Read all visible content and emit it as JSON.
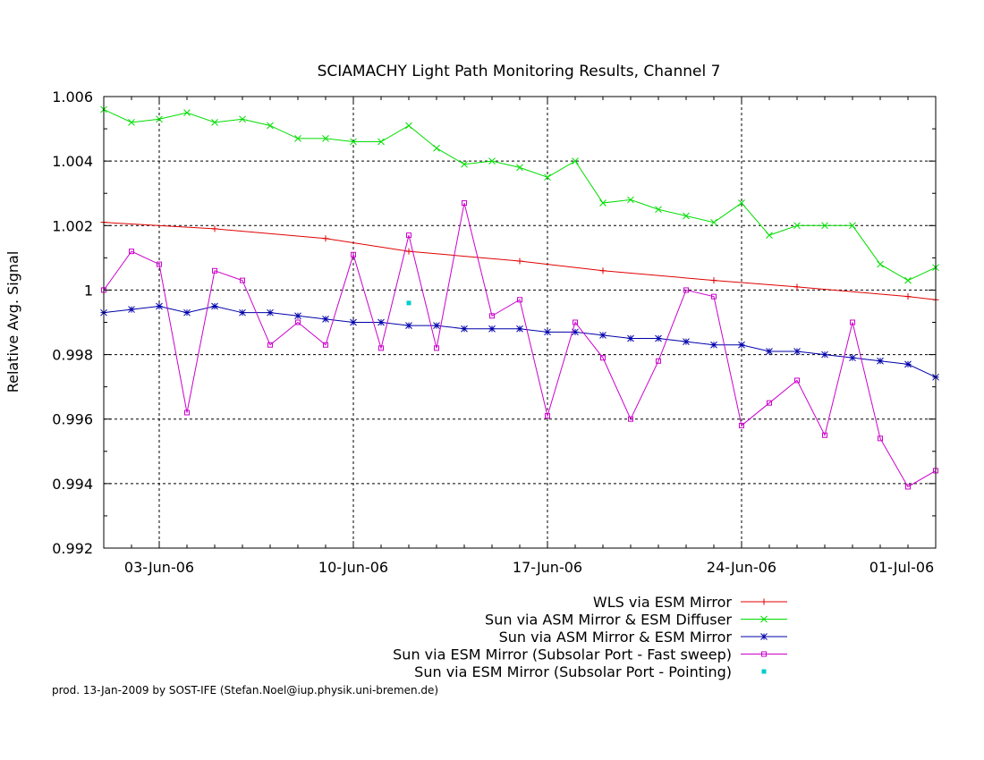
{
  "chart_data": {
    "type": "line",
    "title": "SCIAMACHY Light Path Monitoring Results, Channel 7",
    "xlabel": "",
    "ylabel": "Relative Avg. Signal",
    "x_unit": "date (day of 2006)",
    "xlim": [
      "2006-06-01",
      "2006-07-01"
    ],
    "ylim": [
      0.992,
      1.006
    ],
    "x_ticks": [
      {
        "date": "2006-06-03",
        "label": "03-Jun-06"
      },
      {
        "date": "2006-06-10",
        "label": "10-Jun-06"
      },
      {
        "date": "2006-06-17",
        "label": "17-Jun-06"
      },
      {
        "date": "2006-06-24",
        "label": "24-Jun-06"
      },
      {
        "date": "2006-07-01",
        "label": "01-Jul-06"
      }
    ],
    "y_ticks": [
      {
        "value": 0.992,
        "label": "0.992"
      },
      {
        "value": 0.994,
        "label": "0.994"
      },
      {
        "value": 0.996,
        "label": "0.996"
      },
      {
        "value": 0.998,
        "label": "0.998"
      },
      {
        "value": 1.0,
        "label": "1"
      },
      {
        "value": 1.002,
        "label": "1.002"
      },
      {
        "value": 1.004,
        "label": "1.004"
      },
      {
        "value": 1.006,
        "label": "1.006"
      }
    ],
    "grid": true,
    "legend_position": "bottom-right, below plot",
    "series": [
      {
        "name": "WLS via ESM Mirror",
        "color": "#e00000",
        "marker": "plus",
        "points": [
          {
            "x": "2006-06-01",
            "y": 1.0021
          },
          {
            "x": "2006-06-05",
            "y": 1.0019
          },
          {
            "x": "2006-06-09",
            "y": 1.0016
          },
          {
            "x": "2006-06-12",
            "y": 1.0012
          },
          {
            "x": "2006-06-16",
            "y": 1.0009
          },
          {
            "x": "2006-06-19",
            "y": 1.0006
          },
          {
            "x": "2006-06-23",
            "y": 1.0003
          },
          {
            "x": "2006-06-26",
            "y": 1.0001
          },
          {
            "x": "2006-06-30",
            "y": 0.9998
          },
          {
            "x": "2006-07-01",
            "y": 0.9997
          }
        ]
      },
      {
        "name": "Sun via ASM Mirror & ESM Diffuser",
        "color": "#00dd00",
        "marker": "cross",
        "points": [
          {
            "x": "2006-06-01",
            "y": 1.0056
          },
          {
            "x": "2006-06-02",
            "y": 1.0052
          },
          {
            "x": "2006-06-03",
            "y": 1.0053
          },
          {
            "x": "2006-06-04",
            "y": 1.0055
          },
          {
            "x": "2006-06-05",
            "y": 1.0052
          },
          {
            "x": "2006-06-06",
            "y": 1.0053
          },
          {
            "x": "2006-06-07",
            "y": 1.0051
          },
          {
            "x": "2006-06-08",
            "y": 1.0047
          },
          {
            "x": "2006-06-09",
            "y": 1.0047
          },
          {
            "x": "2006-06-10",
            "y": 1.0046
          },
          {
            "x": "2006-06-11",
            "y": 1.0046
          },
          {
            "x": "2006-06-12",
            "y": 1.0051
          },
          {
            "x": "2006-06-13",
            "y": 1.0044
          },
          {
            "x": "2006-06-14",
            "y": 1.0039
          },
          {
            "x": "2006-06-15",
            "y": 1.004
          },
          {
            "x": "2006-06-16",
            "y": 1.0038
          },
          {
            "x": "2006-06-17",
            "y": 1.0035
          },
          {
            "x": "2006-06-18",
            "y": 1.004
          },
          {
            "x": "2006-06-19",
            "y": 1.0027
          },
          {
            "x": "2006-06-20",
            "y": 1.0028
          },
          {
            "x": "2006-06-21",
            "y": 1.0025
          },
          {
            "x": "2006-06-22",
            "y": 1.0023
          },
          {
            "x": "2006-06-23",
            "y": 1.0021
          },
          {
            "x": "2006-06-24",
            "y": 1.0027
          },
          {
            "x": "2006-06-25",
            "y": 1.0017
          },
          {
            "x": "2006-06-26",
            "y": 1.002
          },
          {
            "x": "2006-06-27",
            "y": 1.002
          },
          {
            "x": "2006-06-28",
            "y": 1.002
          },
          {
            "x": "2006-06-29",
            "y": 1.0008
          },
          {
            "x": "2006-06-30",
            "y": 1.0003
          },
          {
            "x": "2006-07-01",
            "y": 1.0007
          }
        ]
      },
      {
        "name": "Sun via ASM Mirror & ESM Mirror",
        "color": "#0000aa",
        "marker": "star",
        "points": [
          {
            "x": "2006-06-01",
            "y": 0.9993
          },
          {
            "x": "2006-06-02",
            "y": 0.9994
          },
          {
            "x": "2006-06-03",
            "y": 0.9995
          },
          {
            "x": "2006-06-04",
            "y": 0.9993
          },
          {
            "x": "2006-06-05",
            "y": 0.9995
          },
          {
            "x": "2006-06-06",
            "y": 0.9993
          },
          {
            "x": "2006-06-07",
            "y": 0.9993
          },
          {
            "x": "2006-06-08",
            "y": 0.9992
          },
          {
            "x": "2006-06-09",
            "y": 0.9991
          },
          {
            "x": "2006-06-10",
            "y": 0.999
          },
          {
            "x": "2006-06-11",
            "y": 0.999
          },
          {
            "x": "2006-06-12",
            "y": 0.9989
          },
          {
            "x": "2006-06-13",
            "y": 0.9989
          },
          {
            "x": "2006-06-14",
            "y": 0.9988
          },
          {
            "x": "2006-06-15",
            "y": 0.9988
          },
          {
            "x": "2006-06-16",
            "y": 0.9988
          },
          {
            "x": "2006-06-17",
            "y": 0.9987
          },
          {
            "x": "2006-06-18",
            "y": 0.9987
          },
          {
            "x": "2006-06-19",
            "y": 0.9986
          },
          {
            "x": "2006-06-20",
            "y": 0.9985
          },
          {
            "x": "2006-06-21",
            "y": 0.9985
          },
          {
            "x": "2006-06-22",
            "y": 0.9984
          },
          {
            "x": "2006-06-23",
            "y": 0.9983
          },
          {
            "x": "2006-06-24",
            "y": 0.9983
          },
          {
            "x": "2006-06-25",
            "y": 0.9981
          },
          {
            "x": "2006-06-26",
            "y": 0.9981
          },
          {
            "x": "2006-06-27",
            "y": 0.998
          },
          {
            "x": "2006-06-28",
            "y": 0.9979
          },
          {
            "x": "2006-06-29",
            "y": 0.9978
          },
          {
            "x": "2006-06-30",
            "y": 0.9977
          },
          {
            "x": "2006-07-01",
            "y": 0.9973
          }
        ]
      },
      {
        "name": "Sun via ESM Mirror (Subsolar Port - Fast sweep)",
        "color": "#cc00cc",
        "marker": "square",
        "points": [
          {
            "x": "2006-06-01",
            "y": 1.0
          },
          {
            "x": "2006-06-02",
            "y": 1.0012
          },
          {
            "x": "2006-06-03",
            "y": 1.0008
          },
          {
            "x": "2006-06-04",
            "y": 0.9962
          },
          {
            "x": "2006-06-05",
            "y": 1.0006
          },
          {
            "x": "2006-06-06",
            "y": 1.0003
          },
          {
            "x": "2006-06-07",
            "y": 0.9983
          },
          {
            "x": "2006-06-08",
            "y": 0.999
          },
          {
            "x": "2006-06-09",
            "y": 0.9983
          },
          {
            "x": "2006-06-10",
            "y": 1.0011
          },
          {
            "x": "2006-06-11",
            "y": 0.9982
          },
          {
            "x": "2006-06-12",
            "y": 1.0017
          },
          {
            "x": "2006-06-13",
            "y": 0.9982
          },
          {
            "x": "2006-06-14",
            "y": 1.0027
          },
          {
            "x": "2006-06-15",
            "y": 0.9992
          },
          {
            "x": "2006-06-16",
            "y": 0.9997
          },
          {
            "x": "2006-06-17",
            "y": 0.9961
          },
          {
            "x": "2006-06-18",
            "y": 0.999
          },
          {
            "x": "2006-06-19",
            "y": 0.9979
          },
          {
            "x": "2006-06-20",
            "y": 0.996
          },
          {
            "x": "2006-06-21",
            "y": 0.9978
          },
          {
            "x": "2006-06-22",
            "y": 1.0
          },
          {
            "x": "2006-06-23",
            "y": 0.9998
          },
          {
            "x": "2006-06-24",
            "y": 0.9958
          },
          {
            "x": "2006-06-25",
            "y": 0.9965
          },
          {
            "x": "2006-06-26",
            "y": 0.9972
          },
          {
            "x": "2006-06-27",
            "y": 0.9955
          },
          {
            "x": "2006-06-28",
            "y": 0.999
          },
          {
            "x": "2006-06-29",
            "y": 0.9954
          },
          {
            "x": "2006-06-30",
            "y": 0.9939
          },
          {
            "x": "2006-07-01",
            "y": 0.9944
          }
        ]
      },
      {
        "name": "Sun via ESM Mirror (Subsolar Port - Pointing)",
        "color": "#00cccc",
        "marker": "filled-square",
        "points": [
          {
            "x": "2006-06-12",
            "y": 0.9996
          }
        ]
      }
    ]
  },
  "footer": "prod. 13-Jan-2009 by SOST-IFE (Stefan.Noel@iup.physik.uni-bremen.de)"
}
